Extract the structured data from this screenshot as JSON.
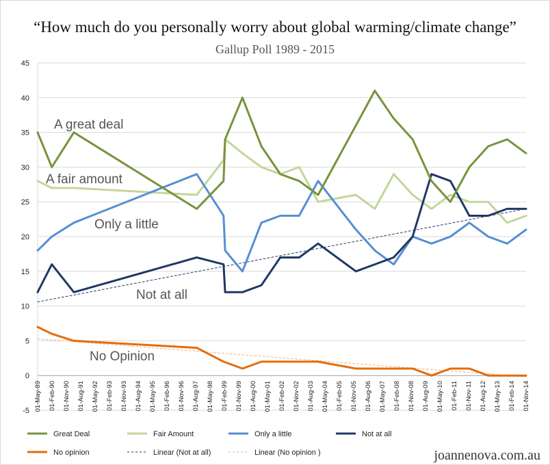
{
  "chart_data": {
    "type": "line",
    "title": "“How much do you personally worry about global warming/climate change”",
    "subtitle": "Gallup Poll 1989 - 2015",
    "credit": "joannenova.com.au",
    "ylim": [
      -5,
      45
    ],
    "yticks": [
      -5,
      0,
      5,
      10,
      15,
      20,
      25,
      30,
      35,
      40,
      45
    ],
    "grid": "horizontal major gridlines",
    "legend": "bottom",
    "x_tick_labels": [
      "01-May-89",
      "01-Feb-90",
      "01-Nov-90",
      "01-Aug-91",
      "01-May-92",
      "01-Feb-93",
      "01-Nov-93",
      "01-Aug-94",
      "01-May-95",
      "01-Feb-96",
      "01-Nov-96",
      "01-Aug-97",
      "01-May-98",
      "01-Feb-99",
      "01-Nov-99",
      "01-Aug-00",
      "01-May-01",
      "01-Feb-02",
      "01-Nov-02",
      "01-Aug-03",
      "01-May-04",
      "01-Feb-05",
      "01-Nov-05",
      "01-Aug-06",
      "01-May-07",
      "01-Feb-08",
      "01-Nov-08",
      "01-Aug-09",
      "01-May-10",
      "01-Feb-11",
      "01-Nov-11",
      "01-Aug-12",
      "01-May-13",
      "01-Feb-14",
      "01-Nov-14"
    ],
    "annotations": [
      {
        "text": "A great deal",
        "series": "Great Deal"
      },
      {
        "text": "A fair amount",
        "series": "Fair Amount"
      },
      {
        "text": "Only a little",
        "series": "Only a little"
      },
      {
        "text": "Not at all",
        "series": "Not at all"
      },
      {
        "text": "No Opinion",
        "series": "No opinion"
      }
    ],
    "series": [
      {
        "name": "Great Deal",
        "color": "#77933c",
        "style": "solid",
        "points": [
          [
            "1989-05-01",
            35
          ],
          [
            "1990-02-01",
            30
          ],
          [
            "1991-04-01",
            35
          ],
          [
            "1997-10-01",
            24
          ],
          [
            "1999-03-01",
            28
          ],
          [
            "1999-04-01",
            34
          ],
          [
            "2000-03-01",
            40
          ],
          [
            "2001-03-01",
            33
          ],
          [
            "2002-03-01",
            29
          ],
          [
            "2003-03-01",
            28
          ],
          [
            "2004-03-01",
            26
          ],
          [
            "2006-03-01",
            36
          ],
          [
            "2007-03-01",
            41
          ],
          [
            "2008-03-01",
            37
          ],
          [
            "2009-03-01",
            34
          ],
          [
            "2010-03-01",
            28
          ],
          [
            "2011-03-01",
            25
          ],
          [
            "2012-03-01",
            30
          ],
          [
            "2013-03-01",
            33
          ],
          [
            "2014-03-01",
            34
          ],
          [
            "2015-03-01",
            32
          ]
        ]
      },
      {
        "name": "Fair Amount",
        "color": "#c3d69b",
        "style": "solid",
        "points": [
          [
            "1989-05-01",
            28
          ],
          [
            "1990-02-01",
            27
          ],
          [
            "1991-04-01",
            27
          ],
          [
            "1997-10-01",
            26
          ],
          [
            "1999-03-01",
            31
          ],
          [
            "1999-04-01",
            34
          ],
          [
            "2000-03-01",
            32
          ],
          [
            "2001-03-01",
            30
          ],
          [
            "2002-03-01",
            29
          ],
          [
            "2003-03-01",
            30
          ],
          [
            "2004-03-01",
            25
          ],
          [
            "2006-03-01",
            26
          ],
          [
            "2007-03-01",
            24
          ],
          [
            "2008-03-01",
            29
          ],
          [
            "2009-03-01",
            26
          ],
          [
            "2010-03-01",
            24
          ],
          [
            "2011-03-01",
            26
          ],
          [
            "2012-03-01",
            25
          ],
          [
            "2013-03-01",
            25
          ],
          [
            "2014-03-01",
            22
          ],
          [
            "2015-03-01",
            23
          ]
        ]
      },
      {
        "name": "Only a little",
        "color": "#558ed5",
        "style": "solid",
        "points": [
          [
            "1989-05-01",
            18
          ],
          [
            "1990-02-01",
            20
          ],
          [
            "1991-04-01",
            22
          ],
          [
            "1997-10-01",
            29
          ],
          [
            "1999-03-01",
            23
          ],
          [
            "1999-04-01",
            18
          ],
          [
            "2000-03-01",
            15
          ],
          [
            "2001-03-01",
            22
          ],
          [
            "2002-03-01",
            23
          ],
          [
            "2003-03-01",
            23
          ],
          [
            "2004-03-01",
            28
          ],
          [
            "2006-03-01",
            21
          ],
          [
            "2007-03-01",
            18
          ],
          [
            "2008-03-01",
            16
          ],
          [
            "2009-03-01",
            20
          ],
          [
            "2010-03-01",
            19
          ],
          [
            "2011-03-01",
            20
          ],
          [
            "2012-03-01",
            22
          ],
          [
            "2013-03-01",
            20
          ],
          [
            "2014-03-01",
            19
          ],
          [
            "2015-03-01",
            21
          ]
        ]
      },
      {
        "name": "Not at all",
        "color": "#1f3864",
        "style": "solid",
        "points": [
          [
            "1989-05-01",
            12
          ],
          [
            "1990-02-01",
            16
          ],
          [
            "1991-04-01",
            12
          ],
          [
            "1997-10-01",
            17
          ],
          [
            "1999-03-01",
            16
          ],
          [
            "1999-04-01",
            12
          ],
          [
            "2000-03-01",
            12
          ],
          [
            "2001-03-01",
            13
          ],
          [
            "2002-03-01",
            17
          ],
          [
            "2003-03-01",
            17
          ],
          [
            "2004-03-01",
            19
          ],
          [
            "2006-03-01",
            15
          ],
          [
            "2007-03-01",
            16
          ],
          [
            "2008-03-01",
            17
          ],
          [
            "2009-03-01",
            20
          ],
          [
            "2010-03-01",
            29
          ],
          [
            "2011-03-01",
            28
          ],
          [
            "2012-03-01",
            23
          ],
          [
            "2013-03-01",
            23
          ],
          [
            "2014-03-01",
            24
          ],
          [
            "2015-03-01",
            24
          ]
        ]
      },
      {
        "name": "No opinion",
        "color": "#e46c0a",
        "style": "solid",
        "points": [
          [
            "1989-05-01",
            7
          ],
          [
            "1990-02-01",
            6
          ],
          [
            "1991-04-01",
            5
          ],
          [
            "1997-10-01",
            4
          ],
          [
            "1999-03-01",
            2
          ],
          [
            "2000-03-01",
            1
          ],
          [
            "2001-03-01",
            2
          ],
          [
            "2002-03-01",
            2
          ],
          [
            "2003-03-01",
            2
          ],
          [
            "2004-03-01",
            2
          ],
          [
            "2006-03-01",
            1
          ],
          [
            "2007-03-01",
            1
          ],
          [
            "2008-03-01",
            1
          ],
          [
            "2009-03-01",
            1
          ],
          [
            "2010-03-01",
            0
          ],
          [
            "2011-03-01",
            1
          ],
          [
            "2012-03-01",
            1
          ],
          [
            "2013-03-01",
            0
          ],
          [
            "2014-03-01",
            0
          ],
          [
            "2015-03-01",
            0
          ]
        ]
      },
      {
        "name": "Linear (Not at all)",
        "color": "#1f3864",
        "style": "dashed",
        "points": [
          [
            "1989-05-01",
            10.6
          ],
          [
            "2015-03-01",
            24
          ]
        ]
      },
      {
        "name": "Linear (No opinion )",
        "color": "#f4b183",
        "style": "dashed",
        "points": [
          [
            "1989-05-01",
            5.3
          ],
          [
            "2015-03-01",
            -0.2
          ]
        ]
      }
    ]
  }
}
